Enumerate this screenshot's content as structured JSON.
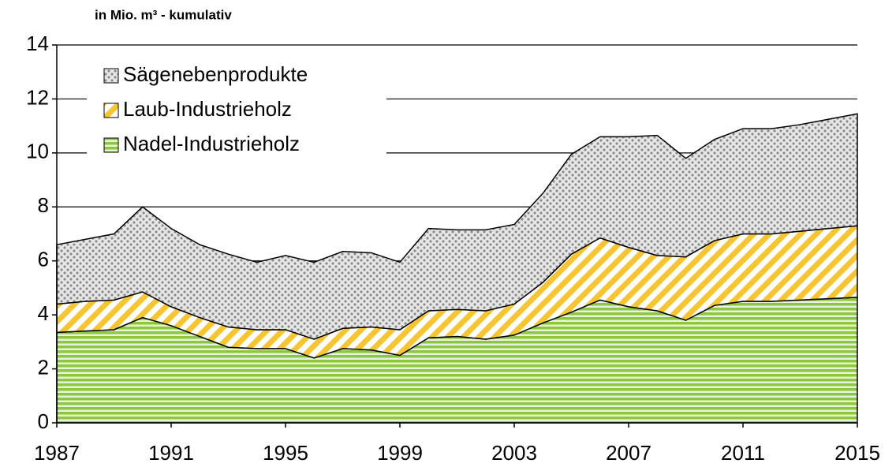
{
  "chart_data": {
    "type": "stacked_area",
    "subtitle": "in Mio. m³ - kumulativ",
    "x": [
      1987,
      1988,
      1989,
      1990,
      1991,
      1992,
      1993,
      1994,
      1995,
      1996,
      1997,
      1998,
      1999,
      2000,
      2001,
      2002,
      2003,
      2004,
      2005,
      2006,
      2007,
      2008,
      2009,
      2010,
      2011,
      2012,
      2013,
      2014,
      2015
    ],
    "xlim": [
      1987,
      2015
    ],
    "xticks": [
      1987,
      1991,
      1995,
      1999,
      2003,
      2007,
      2011,
      2015
    ],
    "ylim": [
      0,
      14
    ],
    "yticks": [
      0,
      2,
      4,
      6,
      8,
      10,
      12,
      14
    ],
    "grid": true,
    "legend": "upper left",
    "series": [
      {
        "name": "Nadel-Industrieholz",
        "color": "#8dc63f",
        "values": [
          3.35,
          3.4,
          3.45,
          3.9,
          3.6,
          3.2,
          2.8,
          2.75,
          2.75,
          2.4,
          2.75,
          2.7,
          2.5,
          3.15,
          3.2,
          3.1,
          3.25,
          3.7,
          4.1,
          4.55,
          4.3,
          4.15,
          3.8,
          4.35,
          4.5,
          4.5,
          4.55,
          4.6,
          4.65
        ]
      },
      {
        "name": "Laub-Industrieholz",
        "color": "#f7c531",
        "values": [
          1.05,
          1.1,
          1.1,
          0.95,
          0.7,
          0.7,
          0.75,
          0.7,
          0.7,
          0.7,
          0.75,
          0.85,
          0.95,
          1.0,
          1.0,
          1.05,
          1.15,
          1.5,
          2.15,
          2.3,
          2.2,
          2.05,
          2.35,
          2.4,
          2.5,
          2.5,
          2.55,
          2.6,
          2.65
        ]
      },
      {
        "name": "Sägenebenprodukte",
        "color": "#8c8c8c",
        "values": [
          2.2,
          2.3,
          2.45,
          3.15,
          2.9,
          2.7,
          2.7,
          2.5,
          2.75,
          2.85,
          2.85,
          2.75,
          2.5,
          3.05,
          2.95,
          3.0,
          2.95,
          3.3,
          3.7,
          3.75,
          4.1,
          4.45,
          3.65,
          3.75,
          3.9,
          3.9,
          3.95,
          4.05,
          4.15
        ]
      }
    ]
  }
}
